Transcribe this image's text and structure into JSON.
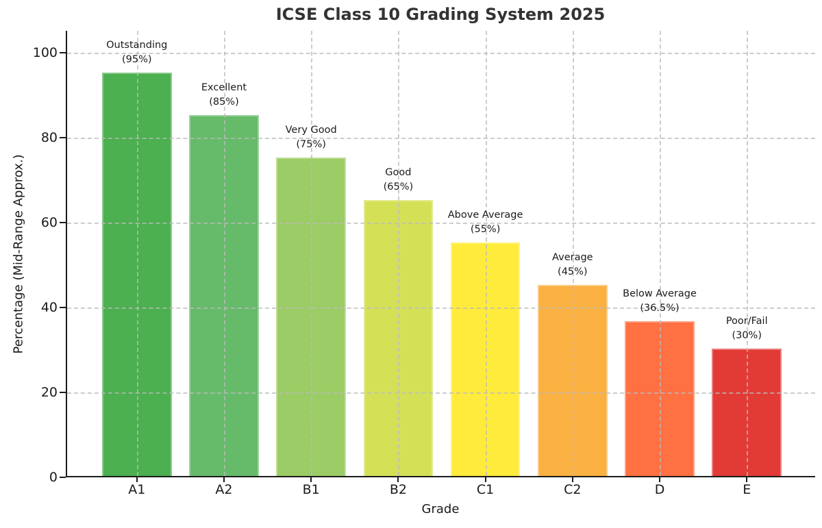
{
  "chart_data": {
    "type": "bar",
    "title": "ICSE Class 10 Grading System 2025",
    "xlabel": "Grade",
    "ylabel": "Percentage (Mid-Range Approx.)",
    "categories": [
      "A1",
      "A2",
      "B1",
      "B2",
      "C1",
      "C2",
      "D",
      "E"
    ],
    "values": [
      95,
      85,
      75,
      65,
      55,
      45,
      36.5,
      30
    ],
    "annotations": [
      {
        "label": "Outstanding",
        "value_text": "(95%)"
      },
      {
        "label": "Excellent",
        "value_text": "(85%)"
      },
      {
        "label": "Very Good",
        "value_text": "(75%)"
      },
      {
        "label": "Good",
        "value_text": "(65%)"
      },
      {
        "label": "Above Average",
        "value_text": "(55%)"
      },
      {
        "label": "Average",
        "value_text": "(45%)"
      },
      {
        "label": "Below Average",
        "value_text": "(36.5%)"
      },
      {
        "label": "Poor/Fail",
        "value_text": "(30%)"
      }
    ],
    "bar_colors": [
      "#4caf50",
      "#66bb6a",
      "#9ccc65",
      "#d4e157",
      "#ffeb3b",
      "#fbb042",
      "#ff7043",
      "#e23b36"
    ],
    "yticks": [
      0,
      20,
      40,
      60,
      80,
      100
    ],
    "ylim": [
      0,
      105.2
    ],
    "grid": true,
    "grid_style": "dashed",
    "legend": "none",
    "title_color": "#333333",
    "background": "#ffffff"
  }
}
